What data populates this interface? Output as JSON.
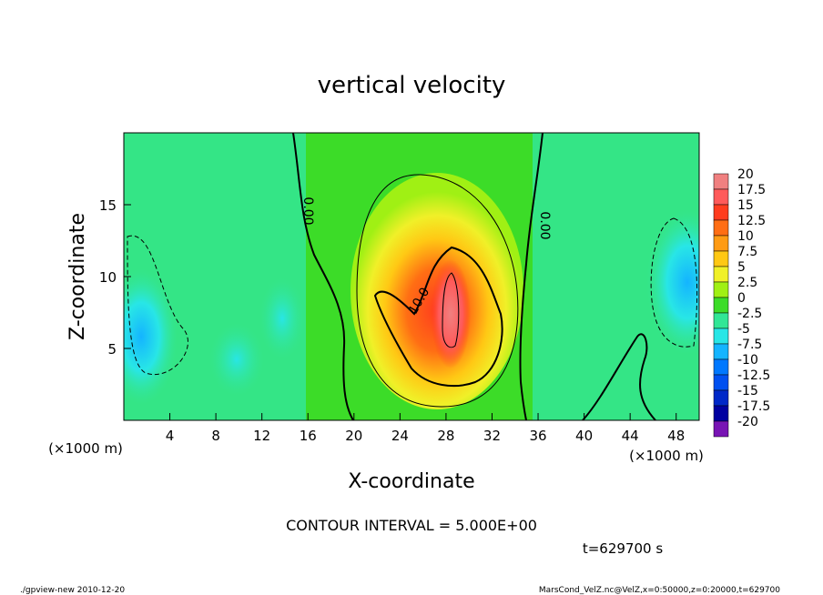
{
  "chart_data": {
    "type": "heatmap",
    "title": "vertical velocity",
    "xlabel": "X-coordinate",
    "ylabel": "Z-coordinate",
    "x_unit": "(×1000 m)",
    "y_unit": "(×1000 m)",
    "xlim": [
      0,
      50
    ],
    "ylim": [
      0,
      20
    ],
    "x_ticks": [
      "4",
      "8",
      "12",
      "16",
      "20",
      "24",
      "28",
      "32",
      "36",
      "40",
      "44",
      "48"
    ],
    "y_ticks": [
      "5",
      "10",
      "15"
    ],
    "colorbar": {
      "labels": [
        "20",
        "17.5",
        "15",
        "12.5",
        "10",
        "7.5",
        "5",
        "2.5",
        "0",
        "-2.5",
        "-5",
        "-7.5",
        "-10",
        "-12.5",
        "-15",
        "-17.5",
        "-20"
      ],
      "colors": [
        "#f08080",
        "#ff5a5a",
        "#ff3c1e",
        "#ff6e14",
        "#ff9b14",
        "#ffc814",
        "#f0f028",
        "#a0f014",
        "#3cdc28",
        "#32e696",
        "#28e6e6",
        "#14b4ff",
        "#0078ff",
        "#0050f0",
        "#0028c8",
        "#0000a0",
        "#7814b4"
      ]
    },
    "contour_labels": [
      "0.00",
      "10.0",
      "0.00"
    ],
    "contour_interval": "CONTOUR INTERVAL = 5.000E+00",
    "time_label": "t=629700 s",
    "features": {
      "updraft_peak": {
        "x": 28.5,
        "z": 8,
        "value": 17.5
      },
      "downdraft_left": {
        "x": 1.5,
        "z": 5.5,
        "value": -7.5
      },
      "downdraft_right": {
        "x": 49,
        "z": 10,
        "value": -7.5
      },
      "zero_contour_left_x": 17,
      "zero_contour_right_x": 35
    }
  },
  "footer": {
    "left": "./gpview-new 2010-12-20",
    "right": "MarsCond_VelZ.nc@VelZ,x=0:50000,z=0:20000,t=629700"
  }
}
